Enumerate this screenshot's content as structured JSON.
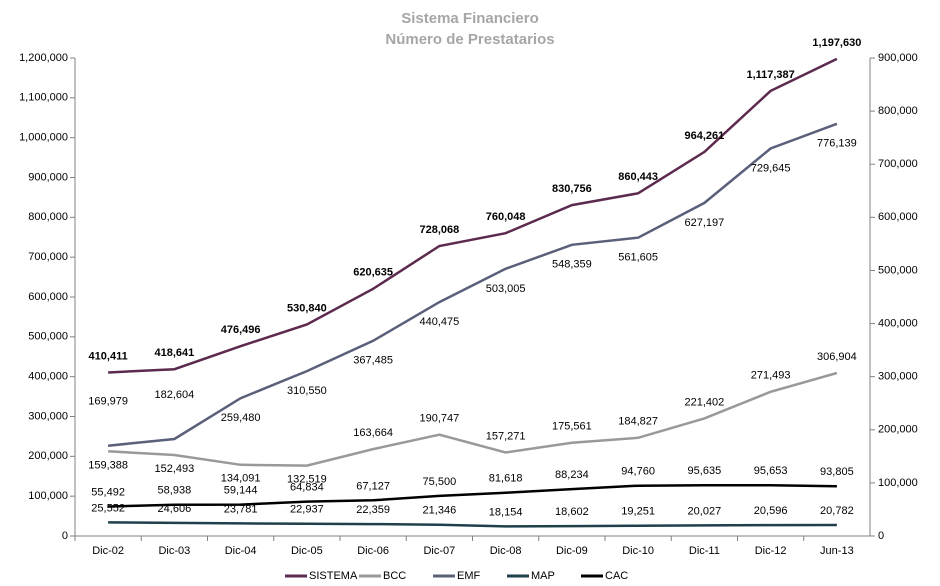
{
  "chart_data": {
    "type": "line",
    "title": "Sistema Financiero",
    "subtitle": "Número de Prestatarios",
    "categories": [
      "Dic-02",
      "Dic-03",
      "Dic-04",
      "Dic-05",
      "Dic-06",
      "Dic-07",
      "Dic-08",
      "Dic-09",
      "Dic-10",
      "Dic-11",
      "Dic-12",
      "Jun-13"
    ],
    "series": [
      {
        "name": "SISTEMA",
        "color": "#5c2a4e",
        "axis": "y",
        "values": [
          410411,
          418641,
          476496,
          530840,
          620635,
          728068,
          760048,
          830756,
          860443,
          964261,
          1117387,
          1197630
        ],
        "value_labels": [
          "410,411",
          "418,641",
          "476,496",
          "530,840",
          "620,635",
          "728,068",
          "760,048",
          "830,756",
          "860,443",
          "964,261",
          "1,117,387",
          "1,197,630"
        ]
      },
      {
        "name": "BCC",
        "color": "#999999",
        "axis": "y2",
        "values": [
          159388,
          152493,
          134091,
          132519,
          163664,
          190747,
          157271,
          175561,
          184827,
          221402,
          271493,
          306904
        ],
        "value_labels": [
          "159,388",
          "152,493",
          "134,091",
          "132,519",
          "163,664",
          "190,747",
          "157,271",
          "175,561",
          "184,827",
          "221,402",
          "271,493",
          "306,904"
        ]
      },
      {
        "name": "EMF",
        "color": "#5a5f7a",
        "axis": "y2",
        "values": [
          169979,
          182604,
          259480,
          310550,
          367485,
          440475,
          503005,
          548359,
          561605,
          627197,
          729645,
          776139
        ],
        "value_labels": [
          "169,979",
          "182,604",
          "259,480",
          "310,550",
          "367,485",
          "440,475",
          "503,005",
          "548,359",
          "561,605",
          "627,197",
          "729,645",
          "776,139"
        ]
      },
      {
        "name": "MAP",
        "color": "#1f3f4a",
        "axis": "y2",
        "values": [
          25552,
          24606,
          23781,
          22937,
          22359,
          21346,
          18154,
          18602,
          19251,
          20027,
          20596,
          20782
        ],
        "value_labels": [
          "25,552",
          "24,606",
          "23,781",
          "22,937",
          "22,359",
          "21,346",
          "18,154",
          "18,602",
          "19,251",
          "20,027",
          "20,596",
          "20,782"
        ]
      },
      {
        "name": "CAC",
        "color": "#000000",
        "axis": "y2",
        "values": [
          55492,
          58938,
          59144,
          64834,
          67127,
          75500,
          81618,
          88234,
          94760,
          95635,
          95653,
          93805
        ],
        "value_labels": [
          "55,492",
          "58,938",
          "59,144",
          "64,834",
          "67,127",
          "75,500",
          "81,618",
          "88,234",
          "94,760",
          "95,635",
          "95,653",
          "93,805"
        ]
      }
    ],
    "ylim": [
      0,
      1200000
    ],
    "yticks": [
      0,
      {
        "value": 100000,
        "label": "100,000"
      },
      {
        "value": 200000,
        "label": "200,000"
      },
      {
        "value": 300000,
        "label": "300,000"
      },
      {
        "value": 400000,
        "label": "400,000"
      },
      {
        "value": 500000,
        "label": "500,000"
      },
      {
        "value": 600000,
        "label": "600,000"
      },
      {
        "value": 700000,
        "label": "700,000"
      },
      {
        "value": 800000,
        "label": "800,000"
      },
      {
        "value": 900000,
        "label": "900,000"
      },
      {
        "value": 1000000,
        "label": "1,000,000"
      },
      {
        "value": 1100000,
        "label": "1,100,000"
      },
      {
        "value": 1200000,
        "label": "1,200,000"
      }
    ],
    "y2lim": [
      0,
      900000
    ],
    "y2ticks": [
      0,
      {
        "value": 100000,
        "label": "100,000"
      },
      {
        "value": 200000,
        "label": "200,000"
      },
      {
        "value": 300000,
        "label": "300,000"
      },
      {
        "value": 400000,
        "label": "400,000"
      },
      {
        "value": 500000,
        "label": "500,000"
      },
      {
        "value": 600000,
        "label": "600,000"
      },
      {
        "value": 700000,
        "label": "700,000"
      },
      {
        "value": 800000,
        "label": "800,000"
      },
      {
        "value": 900000,
        "label": "900,000"
      }
    ],
    "legend": "bottom"
  }
}
